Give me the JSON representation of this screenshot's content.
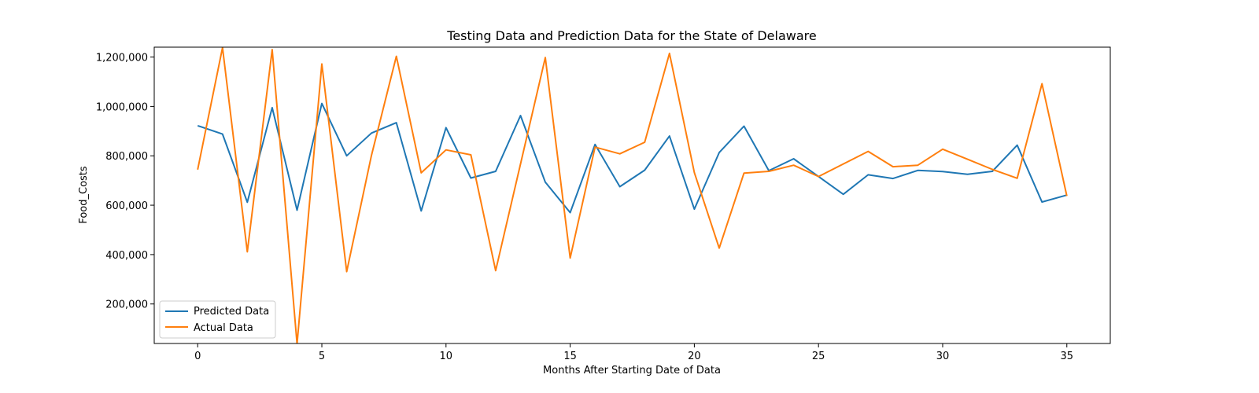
{
  "chart_data": {
    "type": "line",
    "title": "Testing Data and Prediction Data for the State of Delaware",
    "xlabel": "Months After Starting Date of Data",
    "ylabel": "Food_Costs",
    "xlim": [
      -1.75,
      36.75
    ],
    "ylim": [
      40000,
      1240000
    ],
    "xticks": [
      0,
      5,
      10,
      15,
      20,
      25,
      30,
      35
    ],
    "xtick_labels": [
      "0",
      "5",
      "10",
      "15",
      "20",
      "25",
      "30",
      "35"
    ],
    "yticks": [
      200000,
      400000,
      600000,
      800000,
      1000000,
      1200000
    ],
    "ytick_labels": [
      "200,000",
      "400,000",
      "600,000",
      "800,000",
      "1,000,000",
      "1,200,000"
    ],
    "grid": false,
    "legend_position": "lower-left",
    "x": [
      0,
      1,
      2,
      3,
      4,
      5,
      6,
      7,
      8,
      9,
      10,
      11,
      12,
      13,
      14,
      15,
      16,
      17,
      18,
      19,
      20,
      21,
      22,
      23,
      24,
      25,
      26,
      27,
      28,
      29,
      30,
      31,
      32,
      33,
      34,
      35
    ],
    "series": [
      {
        "name": "Predicted Data",
        "color": "#1f77b4",
        "values": [
          922000,
          888000,
          612000,
          995000,
          580000,
          1012000,
          800000,
          892000,
          934000,
          577000,
          914000,
          710000,
          737000,
          963000,
          693000,
          570000,
          846000,
          675000,
          742000,
          880000,
          584000,
          813000,
          920000,
          740000,
          788000,
          716000,
          644000,
          723000,
          708000,
          741000,
          736000,
          725000,
          737000,
          843000,
          613000,
          641000
        ]
      },
      {
        "name": "Actual Data",
        "color": "#ff7f0e",
        "values": [
          744000,
          1238000,
          411000,
          1230000,
          38000,
          1172000,
          331000,
          802000,
          1203000,
          731000,
          824000,
          804000,
          335000,
          767000,
          1198000,
          386000,
          835000,
          808000,
          855000,
          1215000,
          732000,
          426000,
          730000,
          737000,
          762000,
          716000,
          767000,
          818000,
          756000,
          762000,
          827000,
          786000,
          745000,
          709000,
          1092000,
          637000
        ]
      }
    ]
  }
}
